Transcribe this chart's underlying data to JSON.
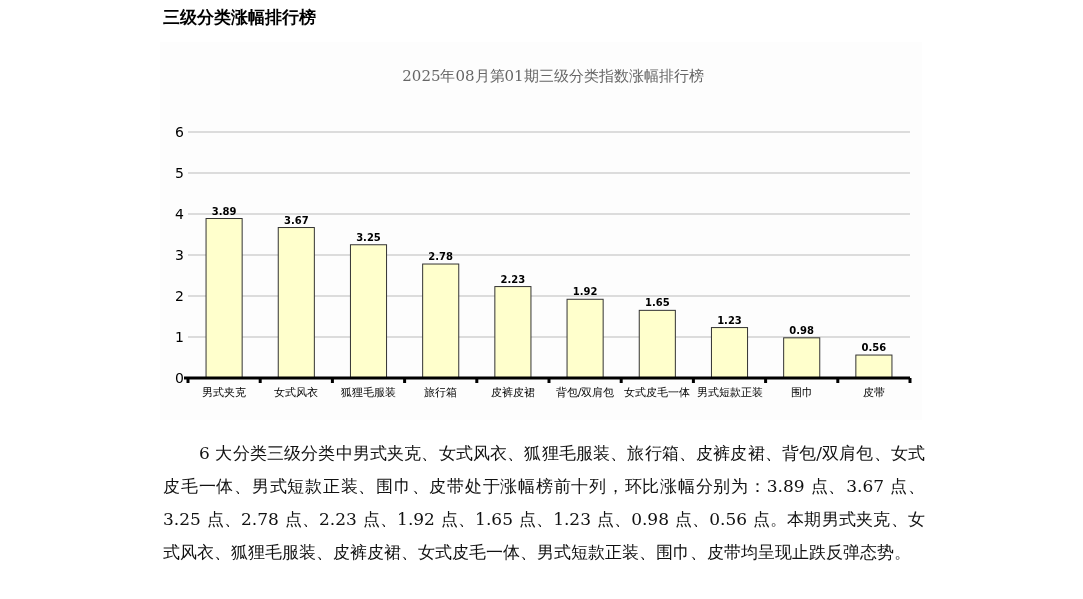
{
  "chart_data": {
    "type": "bar",
    "title": "三级分类涨幅排行榜",
    "subtitle": "2025年08月第01期三级分类指数涨幅排行榜",
    "categories": [
      "男式夹克",
      "女式风衣",
      "狐狸毛服装",
      "旅行箱",
      "皮裤皮裙",
      "背包/双肩包",
      "女式皮毛一体",
      "男式短款正装",
      "围巾",
      "皮带"
    ],
    "values": [
      3.89,
      3.67,
      3.25,
      2.78,
      2.23,
      1.92,
      1.65,
      1.23,
      0.98,
      0.56
    ],
    "color": "#ffffcc",
    "ylim": [
      0,
      6
    ],
    "yticks": [
      0,
      1,
      2,
      3,
      4,
      5,
      6
    ],
    "grid": "y",
    "data_labels": true,
    "annotations": [
      "6 大分类三级分类中男式夹克、女式风衣、狐狸毛服装、旅行箱、皮裤皮裙、背包/双肩包、女式皮毛一体、男式短款正装、围巾、皮带处于涨幅榜前十列，环比涨幅分别为：3.89 点、3.67 点、3.25 点、2.78 点、2.23 点、1.92 点、1.65 点、1.23 点、0.98 点、0.56 点。本期男式夹克、女式风衣、狐狸毛服装、皮裤皮裙、女式皮毛一体、男式短款正装、围巾、皮带均呈现止跌反弹态势。"
    ]
  }
}
